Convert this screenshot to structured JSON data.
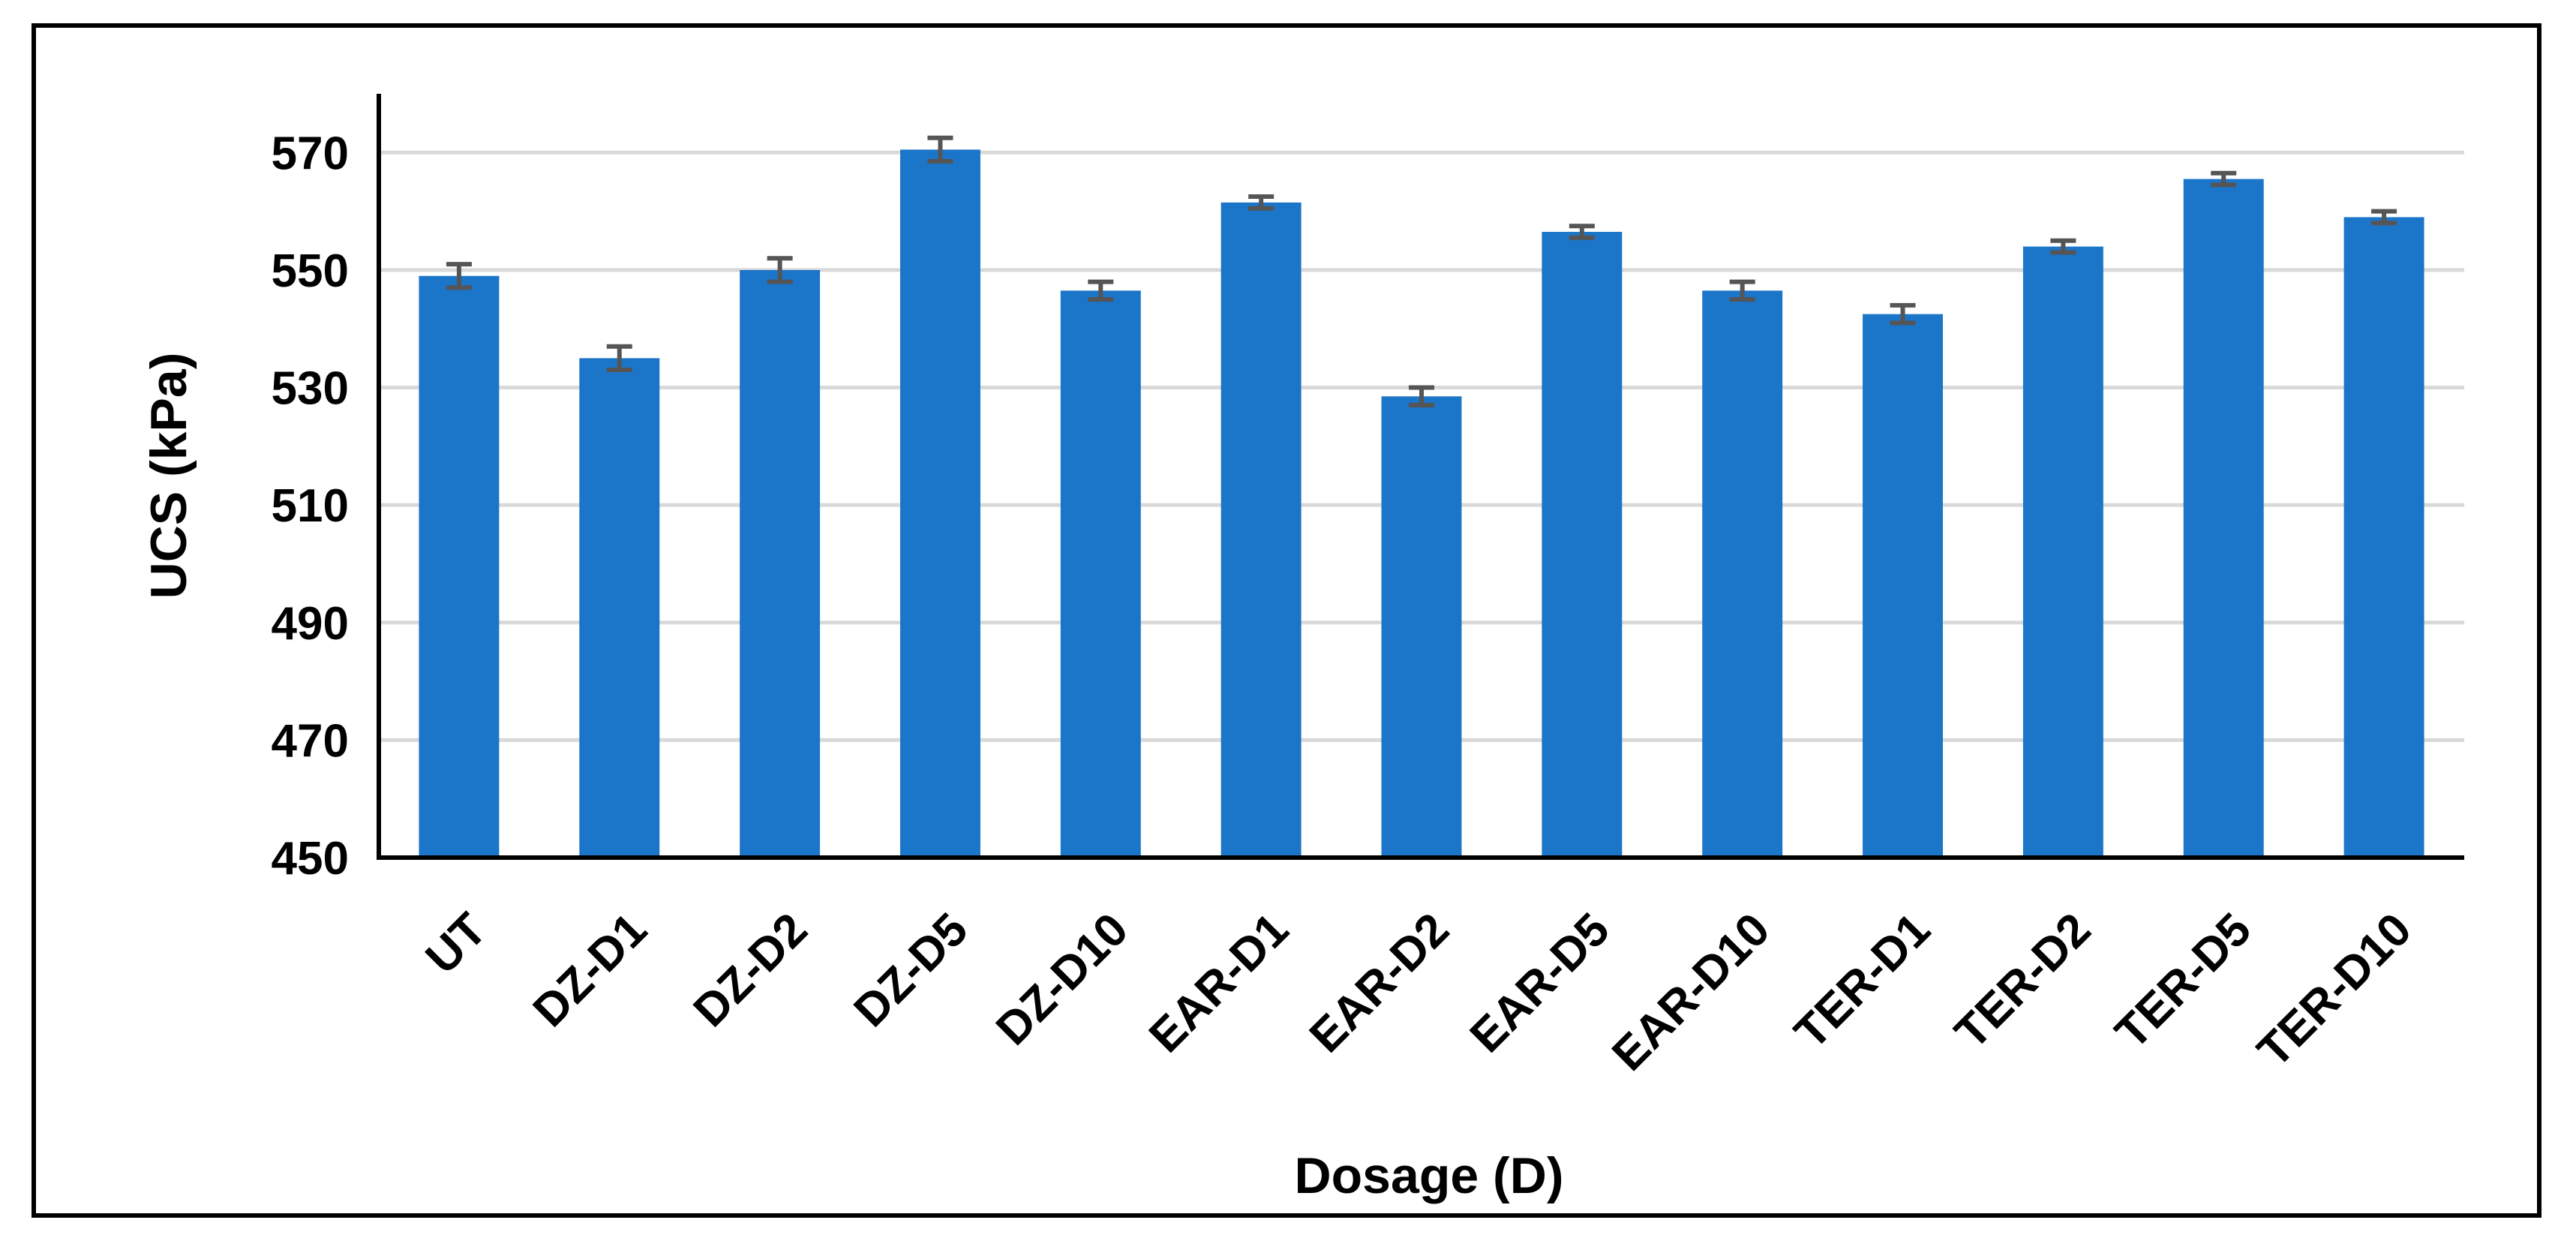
{
  "chart_data": {
    "type": "bar",
    "xlabel": "Dosage (D)",
    "ylabel": "UCS (kPa)",
    "ylim": [
      450,
      580
    ],
    "yticks": [
      450,
      470,
      490,
      510,
      530,
      550,
      570
    ],
    "grid": true,
    "categories": [
      "UT",
      "DZ-D1",
      "DZ-D2",
      "DZ-D5",
      "DZ-D10",
      "EAR-D1",
      "EAR-D2",
      "EAR-D5",
      "EAR-D10",
      "TER-D1",
      "TER-D2",
      "TER-D5",
      "TER-D10"
    ],
    "values": [
      549,
      535,
      550,
      570.5,
      546.5,
      561.5,
      528.5,
      556.5,
      546.5,
      542.5,
      554,
      565.5,
      559
    ],
    "errors": [
      2,
      2,
      2,
      2,
      1.5,
      1,
      1.5,
      1,
      1.5,
      1.5,
      1,
      1,
      1
    ]
  },
  "colors": {
    "bar": "#1b75c9",
    "error_bar": "#555555",
    "grid": "#d9d9d9",
    "axis": "#000000"
  }
}
